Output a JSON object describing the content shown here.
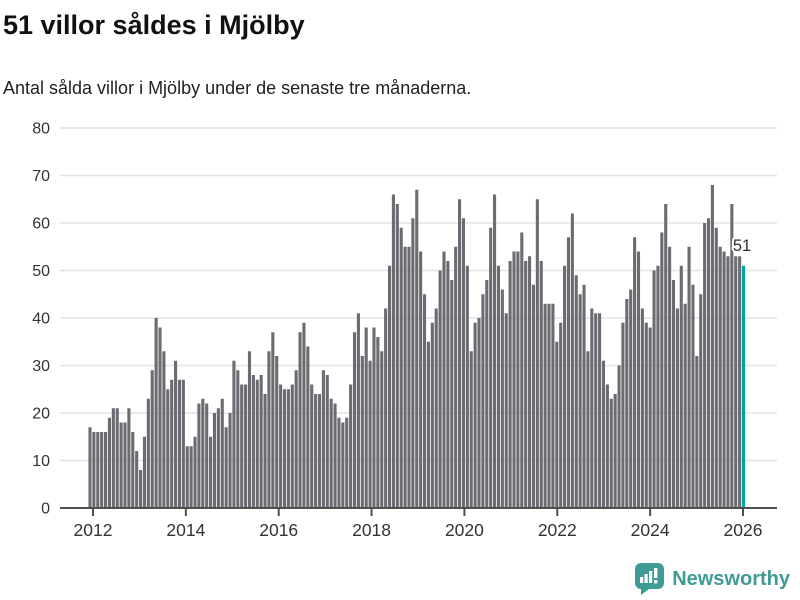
{
  "header": {
    "title": "51 villor såldes i Mjölby",
    "subtitle": "Antal sålda villor i Mjölby under de senaste tre månaderna."
  },
  "footer": {
    "brand": "Newsworthy"
  },
  "colors": {
    "bar": "#6b6b72",
    "highlight": "#00a69b",
    "grid": "#e3e3e3",
    "axis": "#4f4f4f",
    "tick_label": "#333333",
    "annotation_text": "#2e2e2e",
    "brand_teal": "#3f9c95"
  },
  "chart_data": {
    "type": "bar",
    "title": "51 villor såldes i Mjölby",
    "subtitle": "Antal sålda villor i Mjölby under de senaste tre månaderna.",
    "x_description": "Monthly rolling 3-month counts, Dec 2011 through Jan 2026",
    "x_tick_labels": [
      "2012",
      "2014",
      "2016",
      "2018",
      "2020",
      "2022",
      "2024",
      "2026"
    ],
    "y_ticks": [
      0,
      10,
      20,
      30,
      40,
      50,
      60,
      70,
      80
    ],
    "ylim": [
      0,
      80
    ],
    "grid": true,
    "legend": false,
    "values": [
      17,
      16,
      16,
      16,
      16,
      19,
      21,
      21,
      18,
      18,
      21,
      16,
      12,
      8,
      15,
      23,
      29,
      40,
      38,
      33,
      25,
      27,
      31,
      27,
      27,
      13,
      13,
      15,
      22,
      23,
      22,
      15,
      20,
      21,
      23,
      17,
      20,
      31,
      29,
      26,
      26,
      33,
      28,
      27,
      28,
      24,
      33,
      37,
      32,
      26,
      25,
      25,
      26,
      29,
      37,
      39,
      34,
      26,
      24,
      24,
      29,
      28,
      23,
      22,
      19,
      18,
      19,
      26,
      37,
      41,
      32,
      38,
      31,
      38,
      36,
      33,
      42,
      51,
      66,
      64,
      59,
      55,
      55,
      61,
      67,
      54,
      45,
      35,
      39,
      42,
      50,
      54,
      52,
      48,
      55,
      65,
      61,
      51,
      33,
      39,
      40,
      45,
      48,
      59,
      66,
      51,
      46,
      41,
      52,
      54,
      54,
      58,
      52,
      53,
      47,
      65,
      52,
      43,
      43,
      43,
      35,
      39,
      51,
      57,
      62,
      49,
      45,
      47,
      33,
      42,
      41,
      41,
      31,
      26,
      23,
      24,
      30,
      39,
      44,
      46,
      57,
      54,
      42,
      39,
      38,
      50,
      51,
      58,
      64,
      55,
      48,
      42,
      51,
      43,
      55,
      47,
      32,
      45,
      60,
      61,
      68,
      59,
      55,
      54,
      53,
      64,
      53,
      53,
      51
    ],
    "highlight": {
      "index": 168,
      "value": 51,
      "label": "51"
    }
  }
}
